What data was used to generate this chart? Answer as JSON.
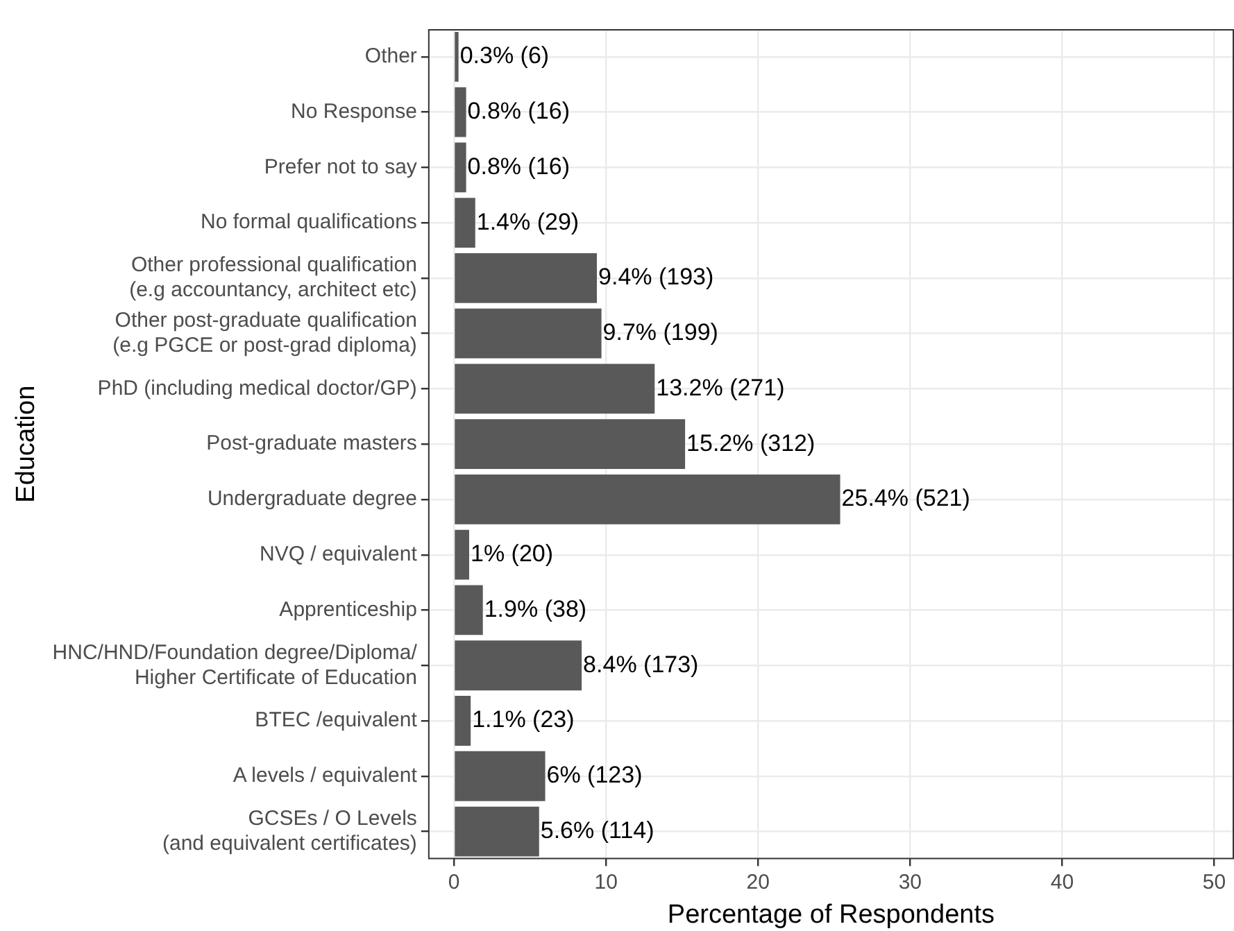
{
  "chart_data": {
    "type": "bar",
    "orientation": "horizontal",
    "xlabel": "Percentage of Respondents",
    "ylabel": "Education",
    "categories": [
      "Other",
      "No Response",
      "Prefer not to say",
      "No formal qualifications",
      "Other professional qualification\n(e.g accountancy, architect etc)",
      "Other post-graduate qualification\n(e.g PGCE or post-grad diploma)",
      "PhD (including medical doctor/GP)",
      "Post-graduate masters",
      "Undergraduate degree",
      "NVQ / equivalent",
      "Apprenticeship",
      "HNC/HND/Foundation degree/Diploma/\nHigher Certificate of Education",
      "BTEC /equivalent",
      "A levels / equivalent",
      "GCSEs / O Levels\n(and equivalent certificates)"
    ],
    "values": [
      0.3,
      0.8,
      0.8,
      1.4,
      9.4,
      9.7,
      13.2,
      15.2,
      25.4,
      1,
      1.9,
      8.4,
      1.1,
      6,
      5.6
    ],
    "value_labels": [
      "0.3% (6)",
      "0.8% (16)",
      "0.8% (16)",
      "1.4% (29)",
      "9.4% (193)",
      "9.7% (199)",
      "13.2% (271)",
      "15.2% (312)",
      "25.4% (521)",
      "1% (20)",
      "1.9% (38)",
      "8.4% (173)",
      "1.1% (23)",
      "6% (123)",
      "5.6% (114)"
    ],
    "color": "#595959",
    "xlim": [
      -1.7,
      51.3
    ],
    "xticks": [
      0,
      10,
      20,
      30,
      40,
      50
    ],
    "grid": true,
    "legend": false
  }
}
